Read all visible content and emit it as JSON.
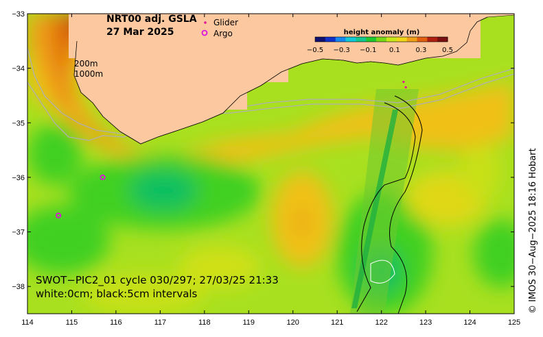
{
  "title": {
    "line1": "NRT00 adj. GSLA",
    "line2": "27 Mar 2025"
  },
  "legend": {
    "glider_label": "Glider",
    "argo_label": "Argo",
    "glider_color": "#e0109a",
    "argo_color": "#e010e0"
  },
  "colorbar": {
    "title": "height anomaly (m)",
    "ticks": [
      "−0.5",
      "−0.3",
      "−0.1",
      "0.1",
      "0.3",
      "0.5"
    ],
    "colors": [
      "#10106e",
      "#1030c8",
      "#1488f0",
      "#10c8d8",
      "#10c890",
      "#20c830",
      "#78d818",
      "#c8e818",
      "#f0d818",
      "#f0a018",
      "#e06010",
      "#b02010",
      "#7a1010"
    ]
  },
  "isobaths": {
    "label_200": "200m",
    "label_1000": "1000m"
  },
  "swot_caption": {
    "line1": "SWOT−PIC2_01 cycle 030/297; 27/03/25 21:33",
    "line2": "white:0cm; black:5cm intervals"
  },
  "credit": "© IMOS 30−Aug−2025 18:16 Hobart",
  "axes": {
    "x_ticks": [
      "114",
      "115",
      "116",
      "117",
      "118",
      "119",
      "120",
      "121",
      "122",
      "123",
      "124",
      "125"
    ],
    "y_ticks": [
      "−33",
      "−34",
      "−35",
      "−36",
      "−37",
      "−38"
    ]
  },
  "colors": {
    "land": "#fcc8a0",
    "ocean_base": "#a8e020"
  },
  "map_data": {
    "lon_range": [
      114,
      125
    ],
    "lat_range": [
      -38.5,
      -33
    ],
    "argo_floats": [
      [
        115.7,
        -36.0
      ],
      [
        114.7,
        -36.7
      ]
    ],
    "glider_points": [
      [
        122.5,
        -34.25
      ],
      [
        122.55,
        -34.35
      ]
    ]
  }
}
